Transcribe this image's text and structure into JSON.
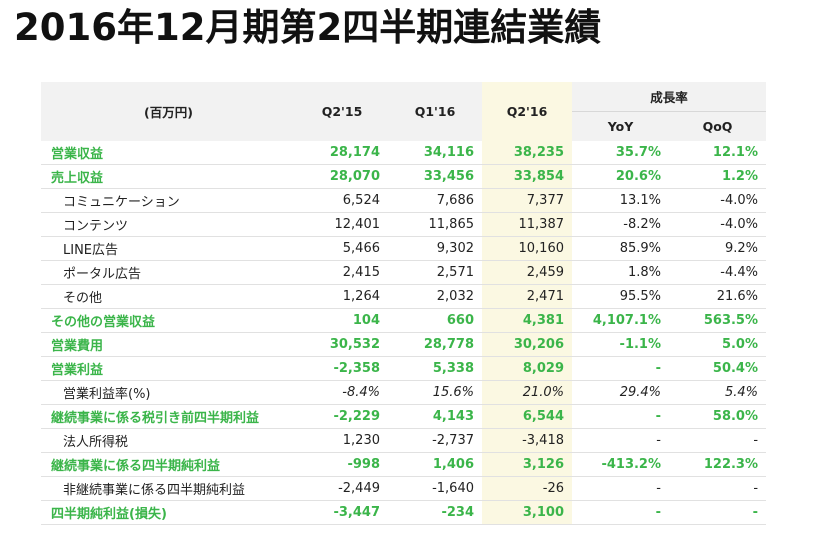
{
  "title": "2016年12月期第2四半期連結業績",
  "table": {
    "unit_label": "(百万円)",
    "periods": [
      "Q2'15",
      "Q1'16",
      "Q2'16"
    ],
    "growth_label": "成長率",
    "growth_cols": [
      "YoY",
      "QoQ"
    ],
    "rows": [
      {
        "label": "営業収益",
        "style": "main",
        "values": [
          "28,174",
          "34,116",
          "38,235",
          "35.7%",
          "12.1%"
        ]
      },
      {
        "label": "売上収益",
        "style": "main",
        "values": [
          "28,070",
          "33,456",
          "33,854",
          "20.6%",
          "1.2%"
        ]
      },
      {
        "label": "コミュニケーション",
        "style": "sub",
        "values": [
          "6,524",
          "7,686",
          "7,377",
          "13.1%",
          "-4.0%"
        ]
      },
      {
        "label": "コンテンツ",
        "style": "sub",
        "values": [
          "12,401",
          "11,865",
          "11,387",
          "-8.2%",
          "-4.0%"
        ]
      },
      {
        "label": "LINE広告",
        "style": "sub",
        "values": [
          "5,466",
          "9,302",
          "10,160",
          "85.9%",
          "9.2%"
        ]
      },
      {
        "label": "ポータル広告",
        "style": "sub",
        "values": [
          "2,415",
          "2,571",
          "2,459",
          "1.8%",
          "-4.4%"
        ]
      },
      {
        "label": "その他",
        "style": "sub",
        "values": [
          "1,264",
          "2,032",
          "2,471",
          "95.5%",
          "21.6%"
        ]
      },
      {
        "label": "その他の営業収益",
        "style": "main",
        "values": [
          "104",
          "660",
          "4,381",
          "4,107.1%",
          "563.5%"
        ]
      },
      {
        "label": "営業費用",
        "style": "main",
        "values": [
          "30,532",
          "28,778",
          "30,206",
          "-1.1%",
          "5.0%"
        ]
      },
      {
        "label": "営業利益",
        "style": "main",
        "values": [
          "-2,358",
          "5,338",
          "8,029",
          "-",
          "50.4%"
        ]
      },
      {
        "label": "営業利益率(%)",
        "style": "sub italic",
        "values": [
          "-8.4%",
          "15.6%",
          "21.0%",
          "29.4%",
          "5.4%"
        ]
      },
      {
        "label": "継続事業に係る税引き前四半期利益",
        "style": "main",
        "values": [
          "-2,229",
          "4,143",
          "6,544",
          "-",
          "58.0%"
        ]
      },
      {
        "label": "法人所得税",
        "style": "sub",
        "values": [
          "1,230",
          "-2,737",
          "-3,418",
          "-",
          "-"
        ]
      },
      {
        "label": "継続事業に係る四半期純利益",
        "style": "main",
        "values": [
          "-998",
          "1,406",
          "3,126",
          "-413.2%",
          "122.3%"
        ]
      },
      {
        "label": "非継続事業に係る四半期純利益",
        "style": "sub",
        "values": [
          "-2,449",
          "-1,640",
          "-26",
          "-",
          "-"
        ]
      },
      {
        "label": "四半期純利益(損失)",
        "style": "main",
        "values": [
          "-3,447",
          "-234",
          "3,100",
          "-",
          "-"
        ]
      }
    ]
  }
}
